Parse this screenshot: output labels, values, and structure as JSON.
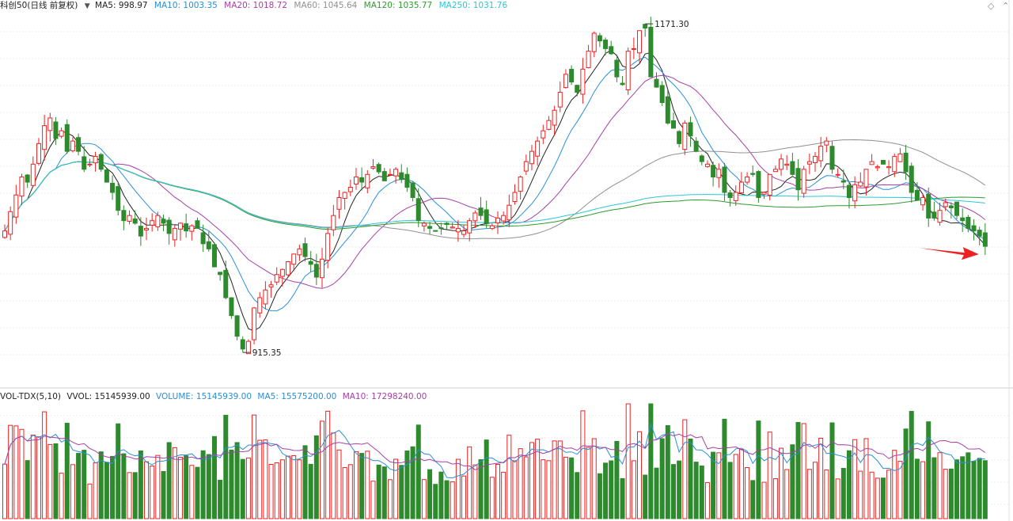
{
  "header": {
    "title": "科创50(日线 前复权)",
    "ma": [
      {
        "label": "MA5: 998.97",
        "color": "#222222"
      },
      {
        "label": "MA10: 1003.35",
        "color": "#2a8fd6"
      },
      {
        "label": "MA20: 1018.72",
        "color": "#a640a6"
      },
      {
        "label": "MA60: 1045.64",
        "color": "#909090"
      },
      {
        "label": "MA120: 1035.77",
        "color": "#2f9a2f"
      },
      {
        "label": "MA250: 1031.76",
        "color": "#2cc6d6"
      }
    ]
  },
  "volume_header": {
    "title": "VOL-TDX(5,10)",
    "vvol": "VVOL: 15145939.00",
    "volume": "VOLUME: 15145939.00",
    "ma5": "MA5: 15575200.00",
    "ma10": "MA10: 17298240.00"
  },
  "annotations": {
    "high": "1171.30",
    "low": "915.35"
  },
  "colors": {
    "up": "#ee2222",
    "down": "#2d8a2d",
    "arrow": "#ee2222"
  },
  "icons": [
    "collapse-icon",
    "diamond-icon",
    "scroll-handle-icon"
  ],
  "chart_data": {
    "type": "candlestick",
    "title": "科创50(日线 前复权)",
    "price_ylim": [
      900,
      1180
    ],
    "high": 1171.3,
    "low": 915.35,
    "ma_last": {
      "MA5": 998.97,
      "MA10": 1003.35,
      "MA20": 1018.72,
      "MA60": 1045.64,
      "MA120": 1035.77,
      "MA250": 1031.76
    },
    "volume_last": 15145939,
    "volume_ma_last": {
      "MA5": 15575200,
      "MA10": 17298240
    },
    "volume_ylim": [
      0,
      30000000
    ],
    "closes": [
      1010,
      1025,
      1038,
      1052,
      1048,
      1062,
      1078,
      1092,
      1098,
      1082,
      1088,
      1072,
      1080,
      1072,
      1058,
      1062,
      1068,
      1058,
      1048,
      1040,
      1026,
      1018,
      1022,
      1016,
      1006,
      1012,
      1018,
      1022,
      1016,
      1008,
      1012,
      1016,
      1010,
      1014,
      1012,
      1000,
      996,
      982,
      976,
      958,
      944,
      928,
      918,
      924,
      950,
      958,
      964,
      968,
      976,
      980,
      986,
      992,
      996,
      990,
      984,
      974,
      988,
      1008,
      1022,
      1036,
      1040,
      1044,
      1052,
      1048,
      1054,
      1060,
      1056,
      1049,
      1054,
      1058,
      1050,
      1044,
      1036,
      1018,
      1016,
      1012,
      1010,
      1012,
      1015,
      1013,
      1012,
      1010,
      1018,
      1024,
      1022,
      1016,
      1014,
      1020,
      1022,
      1030,
      1040,
      1052,
      1064,
      1072,
      1080,
      1088,
      1096,
      1104,
      1118,
      1132,
      1126,
      1118,
      1136,
      1150,
      1164,
      1158,
      1152,
      1148,
      1130,
      1124,
      1150,
      1152,
      1166,
      1168,
      1130,
      1122,
      1110,
      1094,
      1090,
      1078,
      1094,
      1084,
      1072,
      1064,
      1062,
      1052,
      1058,
      1040,
      1036,
      1040,
      1048,
      1052,
      1054,
      1036,
      1040,
      1054,
      1058,
      1066,
      1062,
      1054,
      1042,
      1058,
      1064,
      1068,
      1076,
      1080,
      1058,
      1054,
      1048,
      1036,
      1046,
      1048,
      1058,
      1064,
      1060,
      1062,
      1060,
      1068,
      1070,
      1056,
      1040,
      1034,
      1036,
      1020,
      1020,
      1026,
      1032,
      1028,
      1022,
      1018,
      1012,
      1010,
      1006,
      998
    ],
    "volume_ma5_last": 15575200,
    "volume_ma10_last": 17298240
  }
}
